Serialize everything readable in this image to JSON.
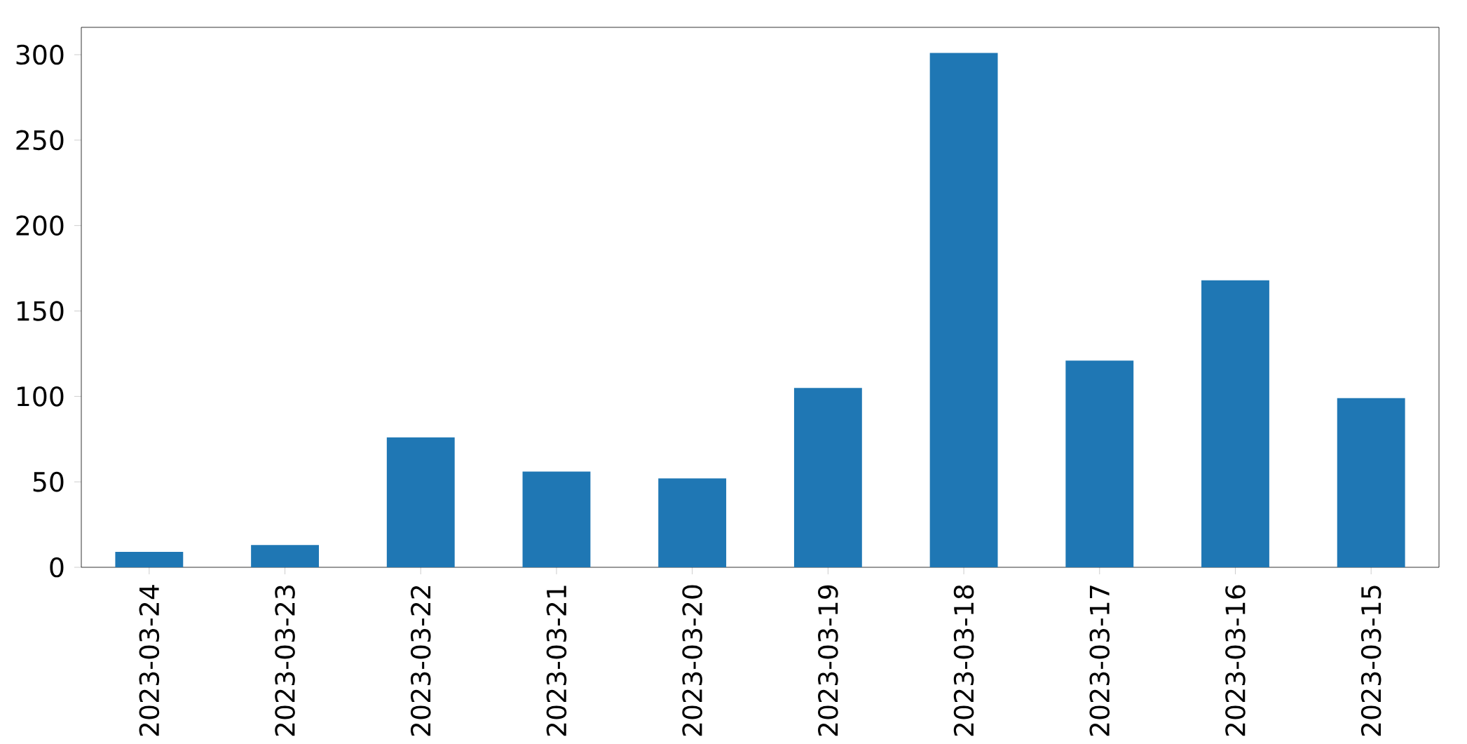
{
  "chart_data": {
    "type": "bar",
    "categories": [
      "2023-03-24",
      "2023-03-23",
      "2023-03-22",
      "2023-03-21",
      "2023-03-20",
      "2023-03-19",
      "2023-03-18",
      "2023-03-17",
      "2023-03-16",
      "2023-03-15"
    ],
    "values": [
      9,
      13,
      76,
      56,
      52,
      105,
      301,
      121,
      168,
      99
    ],
    "color": "#1f77b4",
    "ylim": [
      0,
      316
    ],
    "yticks": [
      0,
      50,
      100,
      150,
      200,
      250,
      300
    ]
  }
}
